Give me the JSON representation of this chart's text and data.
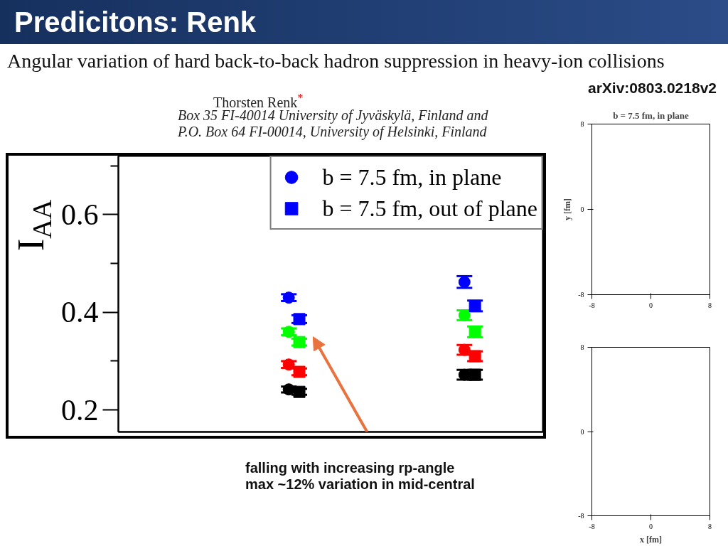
{
  "chart_data": [
    {
      "type": "scatter",
      "title": "Predicitons: Renk",
      "subtitle": "Angular variation of hard back-to-back hadron suppression in heavy-ion collisions",
      "ylabel": "I$_{AA}$",
      "annotations": [
        "arXiv:0803.0218v2",
        "Thorsten Renk$^{*}$",
        "Box 35 FI-40014 University of Jyväskylä, Finland and",
        "P.O. Box 64 FI-00014, University of Helsinki, Finland",
        "falling with increasing rp-angle\nmax ~12% variation in mid-central"
      ],
      "categories": [
        null,
        null
      ],
      "ylim": [
        0.155,
        0.72
      ],
      "yticks": [
        0.2,
        {
          "value": 0.3,
          "label": null
        },
        0.4,
        {
          "value": 0.5,
          "label": null
        },
        0.6,
        {
          "value": 0.7,
          "label": null
        }
      ],
      "tick_labels": "y",
      "legend": "top right",
      "series": [
        {
          "name": "b = 7.5 fm, in plane",
          "color": "#0000ff",
          "marker": "circle",
          "values": [
            0.43,
            0.462
          ],
          "errors": [
            0.007,
            0.012
          ]
        },
        {
          "name": "b = 7.5 fm, out of plane",
          "color": "#0000ff",
          "marker": "square",
          "values": [
            0.386,
            0.413
          ],
          "errors": [
            0.008,
            0.011
          ]
        },
        {
          "color": "#00ff00",
          "marker": "circle",
          "values": [
            0.36,
            0.394
          ],
          "errors": [
            0.007,
            0.01
          ]
        },
        {
          "color": "#00ff00",
          "marker": "square",
          "values": [
            0.339,
            0.36
          ],
          "errors": [
            0.007,
            0.011
          ]
        },
        {
          "color": "#ff0000",
          "marker": "circle",
          "values": [
            0.293,
            0.323
          ],
          "errors": [
            0.007,
            0.01
          ]
        },
        {
          "color": "#ff0000",
          "marker": "square",
          "values": [
            0.278,
            0.31
          ],
          "errors": [
            0.007,
            0.01
          ]
        },
        {
          "color": "#000000",
          "marker": "circle",
          "values": [
            0.242,
            0.272
          ],
          "errors": [
            0.006,
            0.01
          ]
        },
        {
          "color": "#000000",
          "marker": "square",
          "values": [
            0.237,
            0.272
          ],
          "errors": [
            0.006,
            0.01
          ]
        }
      ]
    },
    {
      "type": "scatter",
      "title": "b = 7.5 fm, in plane",
      "ylabel": "y [fm]",
      "xlim": [
        -8,
        8
      ],
      "ylim": [
        -8,
        8
      ],
      "xticks": [
        -8,
        0,
        8
      ],
      "yticks": [
        -8,
        0,
        8
      ]
    },
    {
      "type": "scatter",
      "xlabel": "x [fm]",
      "xlim": [
        -8,
        8
      ],
      "ylim": [
        -8,
        8
      ],
      "xticks": [
        -8,
        0,
        8
      ],
      "yticks": [
        -8,
        0,
        8
      ]
    }
  ]
}
